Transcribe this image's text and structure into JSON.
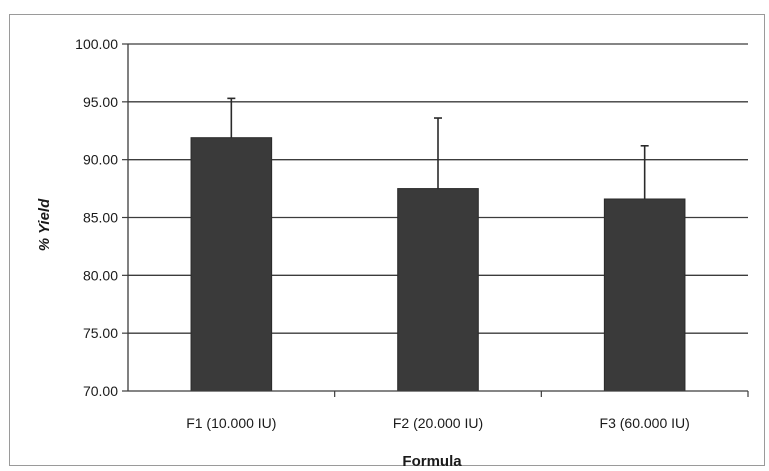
{
  "chart_data": {
    "type": "bar",
    "categories": [
      "F1 (10.000 IU)",
      "F2 (20.000 IU)",
      "F3 (60.000 IU)"
    ],
    "values": [
      91.9,
      87.5,
      86.6
    ],
    "error_upper": [
      95.3,
      93.6,
      91.2
    ],
    "title": "",
    "xlabel": "Formula",
    "ylabel": "% Yield",
    "ylim": [
      70,
      100
    ],
    "yticks": [
      "70.00",
      "75.00",
      "80.00",
      "85.00",
      "90.00",
      "95.00",
      "100.00"
    ],
    "ytick_values": [
      70,
      75,
      80,
      85,
      90,
      95,
      100
    ],
    "grid": true,
    "legend": "none",
    "bar_color": "#3a3a3a",
    "error_bar_color": "#2a2a2a"
  }
}
